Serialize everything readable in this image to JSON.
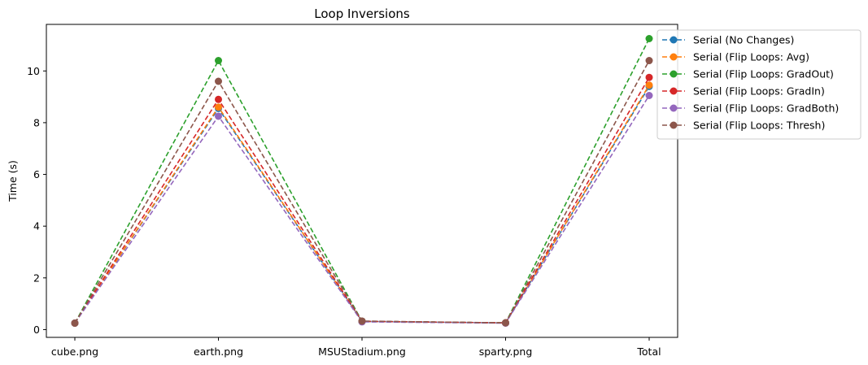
{
  "chart_data": {
    "type": "line",
    "title": "Loop Inversions",
    "xlabel": "",
    "ylabel": "Time (s)",
    "categories": [
      "cube.png",
      "earth.png",
      "MSUStadium.png",
      "sparty.png",
      "Total"
    ],
    "ylim": [
      -0.3,
      11.8
    ],
    "yticks": [
      0,
      2,
      4,
      6,
      8,
      10
    ],
    "grid": false,
    "legend_position": "top-right, outside plot",
    "line_style": "dashed",
    "marker": "circle",
    "series": [
      {
        "name": "Serial (No Changes)",
        "color": "#1f77b4",
        "values": [
          0.25,
          8.55,
          0.32,
          0.26,
          9.4
        ]
      },
      {
        "name": "Serial (Flip Loops: Avg)",
        "color": "#ff7f0e",
        "values": [
          0.25,
          8.6,
          0.32,
          0.26,
          9.45
        ]
      },
      {
        "name": "Serial (Flip Loops: GradOut)",
        "color": "#2ca02c",
        "values": [
          0.25,
          10.4,
          0.32,
          0.26,
          11.25
        ]
      },
      {
        "name": "Serial (Flip Loops: GradIn)",
        "color": "#d62728",
        "values": [
          0.25,
          8.9,
          0.32,
          0.26,
          9.75
        ]
      },
      {
        "name": "Serial (Flip Loops: GradBoth)",
        "color": "#9467bd",
        "values": [
          0.25,
          8.25,
          0.3,
          0.25,
          9.05
        ]
      },
      {
        "name": "Serial (Flip Loops: Thresh)",
        "color": "#8c564b",
        "values": [
          0.25,
          9.6,
          0.33,
          0.26,
          10.4
        ]
      }
    ]
  }
}
